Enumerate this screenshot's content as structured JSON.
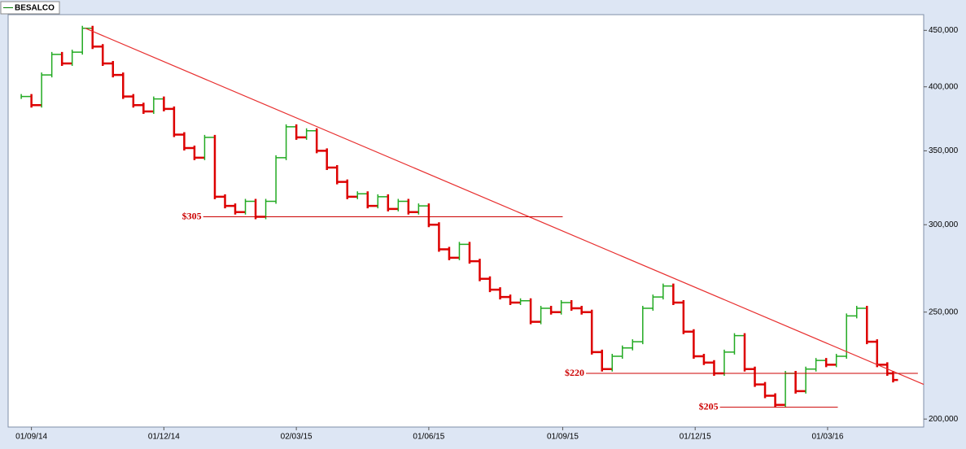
{
  "chart_data": {
    "type": "price-steps",
    "legend": "BESALCO",
    "legend_color": "#008000",
    "up_color": "#22aa22",
    "down_color": "#dd0000",
    "log_scale": true,
    "xlim": [
      "2014-08-16",
      "2016-05-06"
    ],
    "ylim": [
      196700,
      465000
    ],
    "xticks": [
      {
        "value": "2014-09-01",
        "label": "01/09/14"
      },
      {
        "value": "2014-12-01",
        "label": "01/12/14"
      },
      {
        "value": "2015-03-02",
        "label": "02/03/15"
      },
      {
        "value": "2015-06-01",
        "label": "01/06/15"
      },
      {
        "value": "2015-09-01",
        "label": "01/09/15"
      },
      {
        "value": "2015-12-01",
        "label": "01/12/15"
      },
      {
        "value": "2016-03-01",
        "label": "01/03/16"
      }
    ],
    "yticks": [
      {
        "value": 200000,
        "label": "200,000"
      },
      {
        "value": 250000,
        "label": "250,000"
      },
      {
        "value": 300000,
        "label": "300,000"
      },
      {
        "value": 350000,
        "label": "350,000"
      },
      {
        "value": 400000,
        "label": "400,000"
      },
      {
        "value": 450000,
        "label": "450,000"
      }
    ],
    "x": [
      "2014-08-25",
      "2014-09-01",
      "2014-09-08",
      "2014-09-15",
      "2014-09-22",
      "2014-09-29",
      "2014-10-06",
      "2014-10-13",
      "2014-10-20",
      "2014-10-27",
      "2014-11-03",
      "2014-11-10",
      "2014-11-17",
      "2014-11-24",
      "2014-12-01",
      "2014-12-08",
      "2014-12-15",
      "2014-12-22",
      "2014-12-29",
      "2015-01-05",
      "2015-01-12",
      "2015-01-19",
      "2015-01-26",
      "2015-02-02",
      "2015-02-09",
      "2015-02-16",
      "2015-02-23",
      "2015-03-02",
      "2015-03-09",
      "2015-03-16",
      "2015-03-23",
      "2015-03-30",
      "2015-04-06",
      "2015-04-13",
      "2015-04-20",
      "2015-04-27",
      "2015-05-04",
      "2015-05-11",
      "2015-05-18",
      "2015-05-25",
      "2015-06-01",
      "2015-06-08",
      "2015-06-15",
      "2015-06-22",
      "2015-06-29",
      "2015-07-06",
      "2015-07-13",
      "2015-07-20",
      "2015-07-27",
      "2015-08-03",
      "2015-08-10",
      "2015-08-17",
      "2015-08-24",
      "2015-08-31",
      "2015-09-07",
      "2015-09-14",
      "2015-09-21",
      "2015-09-28",
      "2015-10-05",
      "2015-10-12",
      "2015-10-19",
      "2015-10-26",
      "2015-11-02",
      "2015-11-09",
      "2015-11-16",
      "2015-11-23",
      "2015-11-30",
      "2015-12-07",
      "2015-12-14",
      "2015-12-21",
      "2015-12-28",
      "2016-01-04",
      "2016-01-11",
      "2016-01-18",
      "2016-01-25",
      "2016-02-01",
      "2016-02-08",
      "2016-02-15",
      "2016-02-22",
      "2016-02-29",
      "2016-03-07",
      "2016-03-14",
      "2016-03-21",
      "2016-03-28",
      "2016-04-04",
      "2016-04-11",
      "2016-04-15"
    ],
    "values": [
      392000,
      385000,
      410000,
      428000,
      420000,
      430000,
      452000,
      435000,
      420000,
      410000,
      392000,
      385000,
      380000,
      390000,
      382000,
      362000,
      352000,
      345000,
      360000,
      318000,
      312000,
      308000,
      315000,
      305000,
      315000,
      345000,
      368000,
      360000,
      365000,
      350000,
      338000,
      328000,
      318000,
      320000,
      312000,
      318000,
      310000,
      315000,
      308000,
      312000,
      300000,
      285000,
      280000,
      288000,
      278000,
      268000,
      262000,
      258000,
      255000,
      256000,
      245000,
      252000,
      250000,
      255000,
      252000,
      250000,
      230000,
      222000,
      228000,
      232000,
      235000,
      252000,
      258000,
      264000,
      255000,
      240000,
      228000,
      225000,
      220000,
      230000,
      238000,
      222000,
      215000,
      210000,
      206000,
      220000,
      212000,
      222000,
      226000,
      224000,
      228000,
      248000,
      252000,
      235000,
      224000,
      220000,
      217000
    ],
    "trend_line": {
      "from": [
        "2014-10-08",
        452000
      ],
      "to": [
        "2016-05-06",
        215000
      ],
      "color": "#e83030"
    },
    "annotations": [
      {
        "label": "$305",
        "value": 305000,
        "from": "2014-12-28",
        "to": "2015-09-01"
      },
      {
        "label": "$220",
        "value": 220000,
        "from": "2015-09-17",
        "to": "2016-05-02"
      },
      {
        "label": "$205",
        "value": 205000,
        "from": "2015-12-18",
        "to": "2016-03-08"
      }
    ],
    "annotation_color": "#cc0000"
  }
}
